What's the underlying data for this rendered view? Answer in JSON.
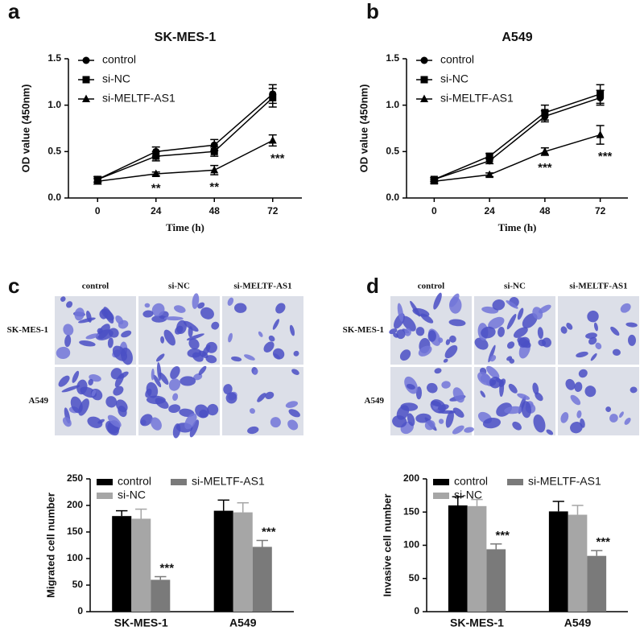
{
  "chart_data": [
    {
      "type": "line",
      "panel_label": "a",
      "title": "SK-MES-1",
      "x_label": "Time (h)",
      "y_label": "OD value (450nm)",
      "x": [
        0,
        24,
        48,
        72
      ],
      "xlim": [
        -12,
        84
      ],
      "xticks": [
        0,
        24,
        48,
        72
      ],
      "ylim": [
        0,
        1.5
      ],
      "yticks": [
        {
          "value": 0,
          "label": "0.0"
        },
        0.5,
        {
          "value": 1,
          "label": "1.0"
        },
        1.5
      ],
      "legend": "upper left",
      "series": [
        {
          "name": "control",
          "color": "#000000",
          "marker": "circle",
          "values": [
            0.2,
            0.5,
            0.57,
            1.12
          ],
          "errors": [
            0.03,
            0.05,
            0.06,
            0.1
          ]
        },
        {
          "name": "si-NC",
          "color": "#000000",
          "marker": "square",
          "values": [
            0.2,
            0.45,
            0.5,
            1.08
          ],
          "errors": [
            0.03,
            0.05,
            0.05,
            0.1
          ]
        },
        {
          "name": "si-MELTF-AS1",
          "color": "#000000",
          "marker": "triangle",
          "values": [
            0.18,
            0.26,
            0.3,
            0.62
          ],
          "errors": [
            0.03,
            0.02,
            0.05,
            0.06
          ],
          "annotations": [
            null,
            "**",
            "**",
            "***"
          ]
        }
      ]
    },
    {
      "type": "line",
      "panel_label": "b",
      "title": "A549",
      "x_label": "Time (h)",
      "y_label": "OD value (450nm)",
      "x": [
        0,
        24,
        48,
        72
      ],
      "xlim": [
        -12,
        84
      ],
      "xticks": [
        0,
        24,
        48,
        72
      ],
      "ylim": [
        0,
        1.5
      ],
      "yticks": [
        {
          "value": 0,
          "label": "0.0"
        },
        0.5,
        {
          "value": 1,
          "label": "1.0"
        },
        1.5
      ],
      "legend": "upper left",
      "series": [
        {
          "name": "control",
          "color": "#000000",
          "marker": "circle",
          "values": [
            0.2,
            0.4,
            0.88,
            1.08
          ],
          "errors": [
            0.02,
            0.03,
            0.06,
            0.08
          ]
        },
        {
          "name": "si-NC",
          "color": "#000000",
          "marker": "square",
          "values": [
            0.2,
            0.45,
            0.92,
            1.12
          ],
          "errors": [
            0.02,
            0.03,
            0.08,
            0.1
          ]
        },
        {
          "name": "si-MELTF-AS1",
          "color": "#000000",
          "marker": "triangle",
          "values": [
            0.18,
            0.25,
            0.5,
            0.68
          ],
          "errors": [
            0.02,
            0.02,
            0.04,
            0.1
          ],
          "annotations": [
            null,
            null,
            "***",
            "***"
          ]
        }
      ]
    },
    {
      "type": "bar",
      "y_label": "Migrated cell number",
      "categories": [
        "SK-MES-1",
        "A549"
      ],
      "ylim": [
        0,
        250
      ],
      "yticks": [
        0,
        50,
        100,
        150,
        200,
        250
      ],
      "legend": "upper left",
      "series": [
        {
          "name": "control",
          "color": "#000000",
          "values": [
            180,
            190
          ],
          "errors": [
            10,
            20
          ]
        },
        {
          "name": "si-NC",
          "color": "#a6a6a6",
          "values": [
            175,
            187
          ],
          "errors": [
            18,
            18
          ]
        },
        {
          "name": "si-MELTF-AS1",
          "color": "#7a7a7a",
          "values": [
            60,
            122
          ],
          "errors": [
            6,
            12
          ],
          "annotations": [
            "***",
            "***"
          ]
        }
      ]
    },
    {
      "type": "bar",
      "y_label": "Invasive cell number",
      "categories": [
        "SK-MES-1",
        "A549"
      ],
      "ylim": [
        0,
        200
      ],
      "yticks": [
        0,
        50,
        100,
        150,
        200
      ],
      "legend": "upper left",
      "series": [
        {
          "name": "control",
          "color": "#000000",
          "values": [
            160,
            151
          ],
          "errors": [
            13,
            15
          ]
        },
        {
          "name": "si-NC",
          "color": "#a6a6a6",
          "values": [
            159,
            146
          ],
          "errors": [
            10,
            14
          ]
        },
        {
          "name": "si-MELTF-AS1",
          "color": "#7a7a7a",
          "values": [
            94,
            84
          ],
          "errors": [
            8,
            8
          ],
          "annotations": [
            "***",
            "***"
          ]
        }
      ]
    }
  ],
  "image_panels": [
    {
      "panel_label": "c",
      "columns": [
        "control",
        "si-NC",
        "si-MELTF-AS1"
      ],
      "rows": [
        "SK-MES-1",
        "A549"
      ]
    },
    {
      "panel_label": "d",
      "columns": [
        "control",
        "si-NC",
        "si-MELTF-AS1"
      ],
      "rows": [
        "SK-MES-1",
        "A549"
      ]
    }
  ]
}
